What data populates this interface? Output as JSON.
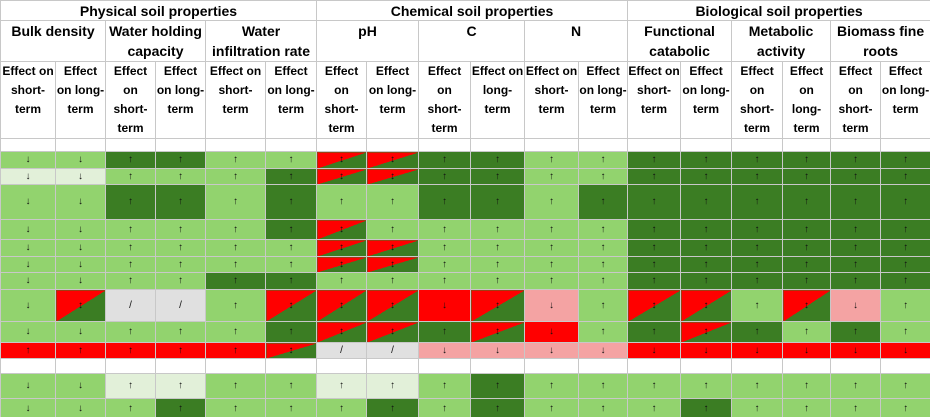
{
  "header": {
    "groups": [
      {
        "label": "Physical soil properties",
        "span": 6
      },
      {
        "label": "Chemical soil properties",
        "span": 6
      },
      {
        "label": "Biological soil properties",
        "span": 6
      }
    ],
    "properties": [
      "Bulk density",
      "Water holding capacity",
      "Water infiltration rate",
      "pH",
      "C",
      "N",
      "Functional catabolic",
      "Metabolic activity",
      "Biomass fine roots"
    ],
    "effects": [
      "Effect on short-term",
      "Effect on long-term",
      "Effect on short-term",
      "Effect on long-term",
      "Effect on short-term",
      "Effect on long-term",
      "Effect on short-term",
      "Effect on long-term",
      "Effect on short-term",
      "Effect on long-term",
      "Effect on short-term",
      "Effect on long-term",
      "Effect on short-term",
      "Effect on long-term",
      "Effect on short-term",
      "Effect on long-term",
      "Effect on short-term",
      "Effect on long-term"
    ]
  },
  "table": {
    "rows": [
      {
        "cells": [
          "↓",
          "↓",
          "↑",
          "↑",
          "↑",
          "↑",
          "↕",
          "↕",
          "↑",
          "↑",
          "↑",
          "↑",
          "↑",
          "↑",
          "↑",
          "↑",
          "↑",
          "↑"
        ],
        "colors": [
          "#92d36e",
          "#92d36e",
          "#3b7d23",
          "#3b7d23",
          "#92d36e",
          "#92d36e",
          "#ff0000 #3b7d23",
          "#ff0000 #3b7d23",
          "#3b7d23",
          "#3b7d23",
          "#92d36e",
          "#92d36e",
          "#3b7d23",
          "#3b7d23",
          "#3b7d23",
          "#3b7d23",
          "#3b7d23",
          "#3b7d23"
        ]
      },
      {
        "cells": [
          "↓",
          "↓",
          "↑",
          "↑",
          "↑",
          "↑",
          "↕",
          "↕",
          "↑",
          "↑",
          "↑",
          "↑",
          "↑",
          "↑",
          "↑",
          "↑",
          "↑",
          "↑"
        ],
        "colors": [
          "#e2f0d9",
          "#e2f0d9",
          "#92d36e",
          "#92d36e",
          "#92d36e",
          "#3b7d23",
          "#ff0000 #3b7d23",
          "#ff0000 #3b7d23",
          "#3b7d23",
          "#3b7d23",
          "#92d36e",
          "#92d36e",
          "#3b7d23",
          "#3b7d23",
          "#3b7d23",
          "#3b7d23",
          "#3b7d23",
          "#3b7d23"
        ]
      },
      {
        "cells": [
          "↓",
          "↓",
          "↑",
          "↑",
          "↑",
          "↑",
          "↑",
          "↑",
          "↑",
          "↑",
          "↑",
          "↑",
          "↑",
          "↑",
          "↑",
          "↑",
          "↑",
          "↑"
        ],
        "colors": [
          "#92d36e",
          "#92d36e",
          "#3b7d23",
          "#3b7d23",
          "#92d36e",
          "#3b7d23",
          "#92d36e",
          "#92d36e",
          "#3b7d23",
          "#3b7d23",
          "#92d36e",
          "#3b7d23",
          "#3b7d23",
          "#3b7d23",
          "#3b7d23",
          "#3b7d23",
          "#3b7d23",
          "#3b7d23"
        ]
      },
      {
        "cells": [
          "↓",
          "↓",
          "↑",
          "↑",
          "↑",
          "↑",
          "↕",
          "↑",
          "↑",
          "↑",
          "↑",
          "↑",
          "↑",
          "↑",
          "↑",
          "↑",
          "↑",
          "↑"
        ],
        "colors": [
          "#92d36e",
          "#92d36e",
          "#92d36e",
          "#92d36e",
          "#92d36e",
          "#3b7d23",
          "#ff0000 #3b7d23",
          "#92d36e",
          "#92d36e",
          "#92d36e",
          "#92d36e",
          "#92d36e",
          "#3b7d23",
          "#3b7d23",
          "#3b7d23",
          "#3b7d23",
          "#3b7d23",
          "#3b7d23"
        ]
      },
      {
        "cells": [
          "↓",
          "↓",
          "↑",
          "↑",
          "↑",
          "↑",
          "↕",
          "↕",
          "↑",
          "↑",
          "↑",
          "↑",
          "↑",
          "↑",
          "↑",
          "↑",
          "↑",
          "↑"
        ],
        "colors": [
          "#92d36e",
          "#92d36e",
          "#92d36e",
          "#92d36e",
          "#92d36e",
          "#92d36e",
          "#ff0000 #3b7d23",
          "#ff0000 #3b7d23",
          "#92d36e",
          "#92d36e",
          "#92d36e",
          "#92d36e",
          "#3b7d23",
          "#3b7d23",
          "#3b7d23",
          "#3b7d23",
          "#3b7d23",
          "#3b7d23"
        ]
      },
      {
        "cells": [
          "↓",
          "↓",
          "↑",
          "↑",
          "↑",
          "↑",
          "↕",
          "↕",
          "↑",
          "↑",
          "↑",
          "↑",
          "↑",
          "↑",
          "↑",
          "↑",
          "↑",
          "↑"
        ],
        "colors": [
          "#92d36e",
          "#92d36e",
          "#92d36e",
          "#92d36e",
          "#92d36e",
          "#92d36e",
          "#ff0000 #3b7d23",
          "#ff0000 #3b7d23",
          "#92d36e",
          "#92d36e",
          "#92d36e",
          "#92d36e",
          "#3b7d23",
          "#3b7d23",
          "#3b7d23",
          "#3b7d23",
          "#3b7d23",
          "#3b7d23"
        ]
      },
      {
        "cells": [
          "↓",
          "↓",
          "↑",
          "↑",
          "↑",
          "↑",
          "↑",
          "↑",
          "↑",
          "↑",
          "↑",
          "↑",
          "↑",
          "↑",
          "↑",
          "↑",
          "↑",
          "↑"
        ],
        "colors": [
          "#92d36e",
          "#92d36e",
          "#92d36e",
          "#92d36e",
          "#3b7d23",
          "#3b7d23",
          "#92d36e",
          "#92d36e",
          "#92d36e",
          "#92d36e",
          "#92d36e",
          "#92d36e",
          "#3b7d23",
          "#3b7d23",
          "#3b7d23",
          "#3b7d23",
          "#3b7d23",
          "#3b7d23"
        ]
      },
      {
        "cells": [
          "↓",
          "↕",
          "/",
          "/",
          "↑",
          "↕",
          "↕",
          "↕",
          "↓",
          "↕",
          "↓",
          "↑",
          "↕",
          "↕",
          "↑",
          "↕",
          "↓",
          "↑"
        ],
        "colors": [
          "#92d36e",
          "#ff0000 #3b7d23",
          "#e0e0e0",
          "#e0e0e0",
          "#92d36e",
          "#ff0000 #3b7d23",
          "#ff0000 #3b7d23",
          "#ff0000 #3b7d23",
          "#ff0000",
          "#ff0000 #3b7d23",
          "#f4a3a3",
          "#92d36e",
          "#ff0000 #3b7d23",
          "#ff0000 #3b7d23",
          "#92d36e",
          "#ff0000 #3b7d23",
          "#f4a3a3",
          "#92d36e"
        ]
      },
      {
        "cells": [
          "↓",
          "↓",
          "↑",
          "↑",
          "↑",
          "↑",
          "↕",
          "↕",
          "↑",
          "↕",
          "↓",
          "↑",
          "↑",
          "↕",
          "↑",
          "↑",
          "↑",
          "↑"
        ],
        "colors": [
          "#92d36e",
          "#92d36e",
          "#92d36e",
          "#92d36e",
          "#92d36e",
          "#3b7d23",
          "#ff0000 #3b7d23",
          "#ff0000 #3b7d23",
          "#3b7d23",
          "#ff0000 #3b7d23",
          "#ff0000",
          "#92d36e",
          "#3b7d23",
          "#ff0000 #3b7d23",
          "#3b7d23",
          "#92d36e",
          "#3b7d23",
          "#92d36e"
        ]
      },
      {
        "cells": [
          "↑",
          "↑",
          "↑",
          "↑",
          "↑",
          "↕",
          "/",
          "/",
          "↓",
          "↓",
          "↓",
          "↓",
          "↓",
          "↓",
          "↓",
          "↓",
          "↓",
          "↓"
        ],
        "colors": [
          "#ff0000",
          "#ff0000",
          "#ff0000",
          "#ff0000",
          "#ff0000",
          "#ff0000 #3b7d23",
          "#e0e0e0",
          "#e0e0e0",
          "#f4a3a3",
          "#f4a3a3",
          "#f4a3a3",
          "#f4a3a3",
          "#ff0000",
          "#ff0000",
          "#ff0000",
          "#ff0000",
          "#ff0000",
          "#ff0000"
        ]
      },
      {
        "cells": [
          "↓",
          "↓",
          "↑",
          "↑",
          "↑",
          "↑",
          "↑",
          "↑",
          "↑",
          "↑",
          "↑",
          "↑",
          "↑",
          "↑",
          "↑",
          "↑",
          "↑",
          "↑"
        ],
        "colors": [
          "#92d36e",
          "#92d36e",
          "#e2f0d9",
          "#e2f0d9",
          "#92d36e",
          "#92d36e",
          "#e2f0d9",
          "#e2f0d9",
          "#92d36e",
          "#3b7d23",
          "#92d36e",
          "#92d36e",
          "#92d36e",
          "#92d36e",
          "#92d36e",
          "#92d36e",
          "#92d36e",
          "#92d36e"
        ]
      },
      {
        "cells": [
          "↓",
          "↓",
          "↑",
          "↑",
          "↑",
          "↑",
          "↑",
          "↑",
          "↑",
          "↑",
          "↑",
          "↑",
          "↑",
          "↑",
          "↑",
          "↑",
          "↑",
          "↑"
        ],
        "colors": [
          "#92d36e",
          "#92d36e",
          "#92d36e",
          "#3b7d23",
          "#92d36e",
          "#92d36e",
          "#92d36e",
          "#3b7d23",
          "#92d36e",
          "#3b7d23",
          "#92d36e",
          "#92d36e",
          "#92d36e",
          "#3b7d23",
          "#92d36e",
          "#92d36e",
          "#92d36e",
          "#92d36e"
        ]
      }
    ]
  }
}
